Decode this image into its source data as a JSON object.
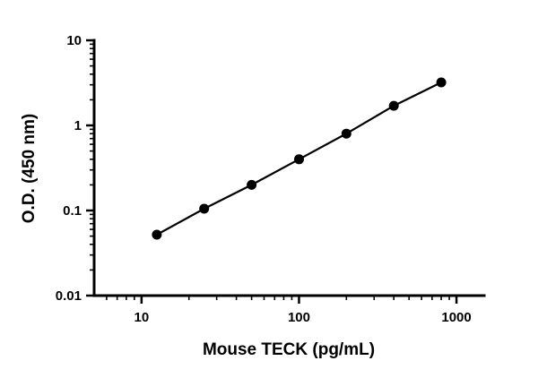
{
  "chart_data": {
    "type": "scatter",
    "title": "",
    "xlabel": "Mouse TECK (pg/mL)",
    "ylabel": "O.D. (450 nm)",
    "x_scale": "log",
    "y_scale": "log",
    "xlim": [
      5,
      1500
    ],
    "ylim": [
      0.01,
      10
    ],
    "x_ticks": [
      10,
      100,
      1000
    ],
    "x_tick_labels": [
      "10",
      "100",
      "1000"
    ],
    "y_ticks": [
      0.01,
      0.1,
      1,
      10
    ],
    "y_tick_labels": [
      "0.01",
      "0.1",
      "1",
      "10"
    ],
    "grid": false,
    "legend": false,
    "series": [
      {
        "name": "standard-curve",
        "marker": "filled-circle",
        "line": true,
        "color": "#000000",
        "x": [
          12.5,
          25,
          50,
          100,
          200,
          400,
          800
        ],
        "y": [
          0.052,
          0.105,
          0.2,
          0.4,
          0.8,
          1.7,
          3.2
        ]
      }
    ]
  },
  "colors": {
    "background": "#ffffff",
    "axis": "#000000",
    "marker": "#000000",
    "line": "#000000"
  }
}
